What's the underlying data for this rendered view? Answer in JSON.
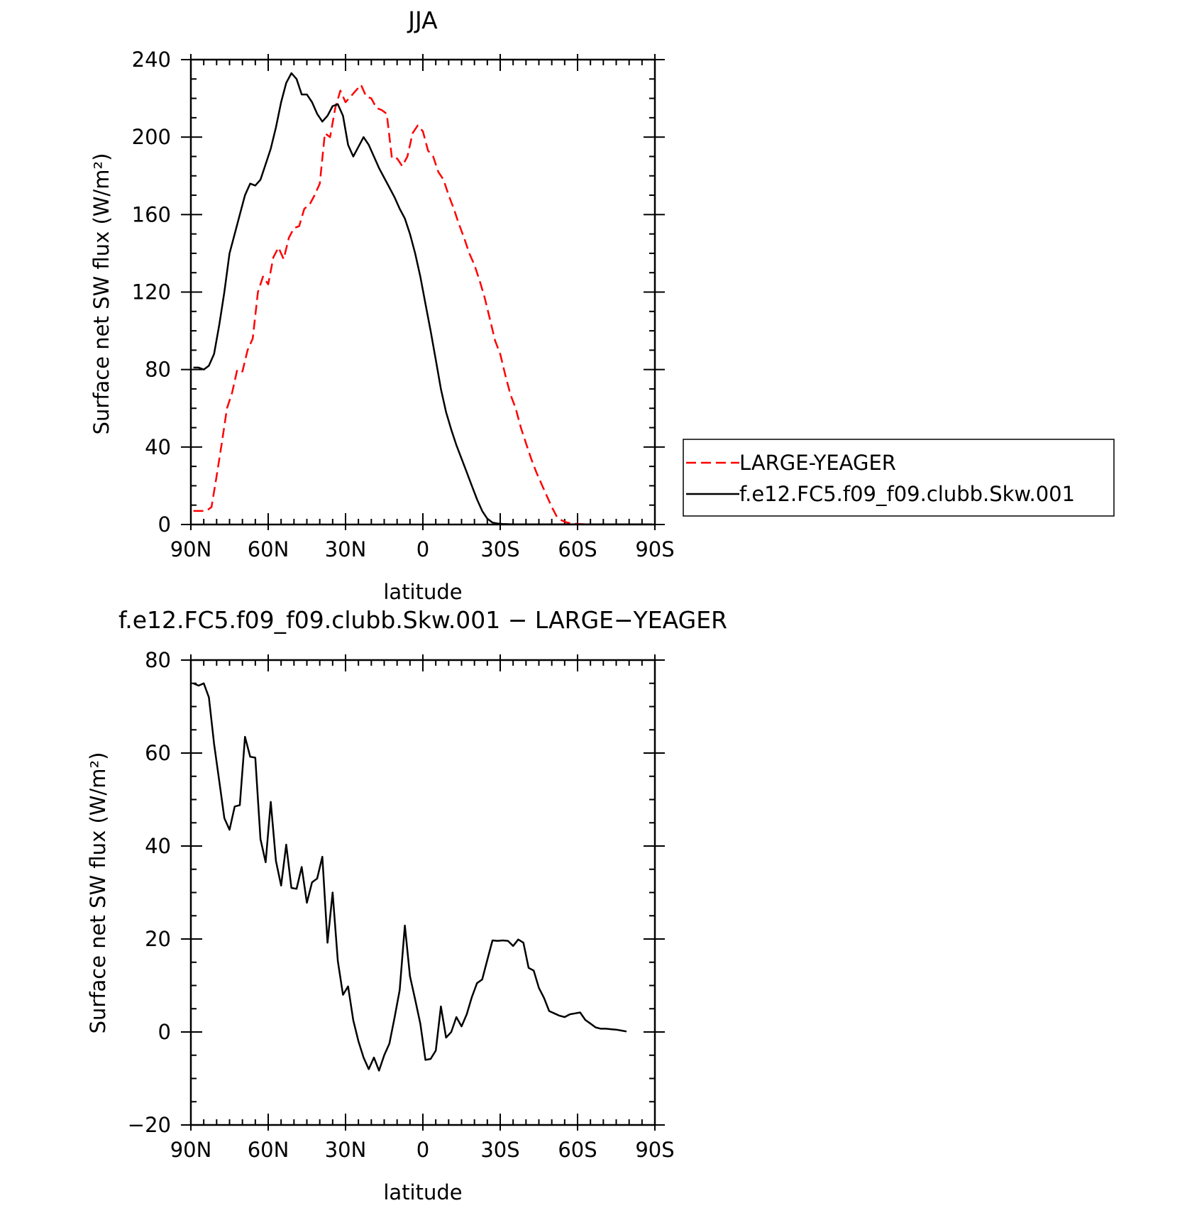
{
  "chart_data": [
    {
      "type": "line",
      "title": "JJA",
      "xlabel": "latitude",
      "ylabel": "Surface net SW flux (W/m²)",
      "xlim": [
        90,
        -90
      ],
      "ylim": [
        0,
        240
      ],
      "x_ticks": [
        90,
        60,
        30,
        0,
        -30,
        -60,
        -90
      ],
      "x_tick_labels": [
        "90N",
        "60N",
        "30N",
        "0",
        "30S",
        "60S",
        "90S"
      ],
      "y_ticks": [
        0,
        40,
        80,
        120,
        160,
        200,
        240
      ],
      "y_tick_labels": [
        "0",
        "40",
        "80",
        "120",
        "160",
        "200",
        "240"
      ],
      "legend_position": "right",
      "series": [
        {
          "name": "LARGE-YEAGER",
          "color": "#ff0000",
          "dash": "dashed",
          "x": [
            89,
            86,
            84,
            82,
            80,
            78,
            76,
            74,
            72,
            70,
            68,
            66,
            64,
            62,
            60,
            58,
            56,
            54,
            52,
            50,
            48,
            46,
            44,
            42,
            40,
            38,
            36,
            34,
            32,
            30,
            28,
            26,
            24,
            22,
            20,
            18,
            16,
            14,
            12,
            10,
            8,
            6,
            4,
            2,
            0,
            -2,
            -4,
            -6,
            -8,
            -10,
            -12,
            -14,
            -16,
            -18,
            -20,
            -22,
            -24,
            -26,
            -28,
            -30,
            -32,
            -34,
            -36,
            -38,
            -40,
            -42,
            -44,
            -46,
            -48,
            -50,
            -52,
            -54,
            -56,
            -58,
            -60,
            -62,
            -64,
            -66,
            -68,
            -70,
            -72,
            -74,
            -76,
            -78,
            -80,
            -82,
            -84,
            -86,
            -88,
            -89
          ],
          "values": [
            7,
            7,
            7,
            9,
            25,
            42,
            60,
            68,
            80,
            79,
            90,
            96,
            120,
            128,
            124,
            138,
            143,
            137,
            148,
            153,
            154,
            163,
            165,
            170,
            176,
            202,
            200,
            215,
            224,
            218,
            221,
            224,
            227,
            221,
            220,
            215,
            214,
            212,
            189,
            189,
            185,
            190,
            202,
            206,
            203,
            193,
            190,
            182,
            178,
            170,
            163,
            155,
            148,
            140,
            134,
            126,
            117,
            106,
            95,
            88,
            77,
            67,
            60,
            50,
            42,
            34,
            27,
            21,
            15,
            9,
            4,
            2,
            1,
            0.5,
            0.3,
            0.2,
            0.1,
            0.1,
            0.1,
            0.1,
            0.1,
            0.1,
            0.1,
            0.1,
            0.1,
            0.1,
            0.1,
            0.1,
            0.1,
            0.1
          ]
        },
        {
          "name": "f.e12.FC5.f09_f09.clubb.Skw.001",
          "color": "#000000",
          "dash": "solid",
          "x": [
            89,
            87,
            85,
            83,
            81,
            79,
            77,
            75,
            73,
            71,
            69,
            67,
            65,
            63,
            61,
            59,
            57,
            55,
            53,
            51,
            49,
            47,
            45,
            43,
            41,
            39,
            37,
            35,
            33,
            31,
            29,
            27,
            25,
            23,
            21,
            19,
            17,
            15,
            13,
            11,
            9,
            7,
            5,
            3,
            1,
            -1,
            -3,
            -5,
            -7,
            -9,
            -11,
            -13,
            -15,
            -17,
            -19,
            -21,
            -23,
            -25,
            -27,
            -29,
            -31,
            -33,
            -35,
            -37,
            -39,
            -41,
            -43,
            -45,
            -47,
            -49,
            -51,
            -53,
            -55,
            -57,
            -59,
            -61,
            -63,
            -65,
            -67,
            -69,
            -71,
            -73,
            -75,
            -77,
            -79,
            -81,
            -83,
            -85,
            -87,
            -89
          ],
          "values": [
            81,
            81,
            80,
            82,
            88,
            103,
            120,
            140,
            150,
            160,
            170,
            176,
            175,
            178,
            186,
            194,
            205,
            218,
            228,
            233,
            230,
            222,
            222,
            218,
            212,
            208,
            211,
            216,
            217,
            211,
            196,
            190,
            195,
            200,
            196,
            190,
            184,
            179,
            174,
            169,
            163,
            158,
            150,
            140,
            128,
            114,
            100,
            85,
            70,
            58,
            49,
            41,
            34,
            27,
            20,
            13,
            7,
            3,
            1,
            0.5,
            0.3,
            0.2,
            0.1,
            0.1,
            0.1,
            0.1,
            0.1,
            0.1,
            0.1,
            0.1,
            0.1,
            0.1,
            0.1,
            0.1,
            0.1,
            0.1,
            0.1,
            0.1,
            0.1,
            0.1,
            0.1,
            0.1,
            0.1,
            0.1,
            0.1,
            0.1,
            0.1,
            0.1,
            0.1,
            0.1
          ]
        }
      ]
    },
    {
      "type": "line",
      "title": "f.e12.FC5.f09_f09.clubb.Skw.001 − LARGE−YEAGER",
      "xlabel": "latitude",
      "ylabel": "Surface net SW flux (W/m²)",
      "xlim": [
        90,
        -90
      ],
      "ylim": [
        -20,
        80
      ],
      "x_ticks": [
        90,
        60,
        30,
        0,
        -30,
        -60,
        -90
      ],
      "x_tick_labels": [
        "90N",
        "60N",
        "30N",
        "0",
        "30S",
        "60S",
        "90S"
      ],
      "y_ticks": [
        -20,
        0,
        20,
        40,
        60,
        80
      ],
      "y_tick_labels": [
        "−20",
        "0",
        "20",
        "40",
        "60",
        "80"
      ],
      "series": [
        {
          "color": "#000000",
          "dash": "solid",
          "x": [
            89,
            87,
            85,
            83,
            81,
            79,
            77,
            75,
            73,
            71,
            69,
            67,
            65,
            63,
            61,
            59,
            57,
            55,
            53,
            51,
            49,
            47,
            45,
            43,
            41,
            39,
            37,
            35,
            33,
            31,
            29,
            27,
            25,
            23,
            21,
            19,
            17,
            15,
            13,
            11,
            9,
            7,
            5,
            3,
            1,
            -1,
            -3,
            -5,
            -7,
            -9,
            -11,
            -13,
            -15,
            -17,
            -19,
            -21,
            -23,
            -25,
            -27,
            -29,
            -31,
            -33,
            -35,
            -37,
            -39,
            -41,
            -43,
            -45,
            -47,
            -49,
            -51,
            -53,
            -55,
            -57,
            -59,
            -61,
            -63,
            -65,
            -67,
            -69,
            -71,
            -73,
            -75,
            -77,
            -79
          ],
          "values": [
            75,
            74.5,
            75,
            72,
            62,
            54,
            46,
            43.5,
            48.5,
            48.8,
            63.5,
            59.2,
            59,
            41.5,
            36.5,
            49.5,
            36.8,
            31.5,
            40.3,
            31,
            30.8,
            35.5,
            27.8,
            32.2,
            33,
            37.7,
            19.2,
            30,
            15.3,
            8,
            9.8,
            2.5,
            -2,
            -5.5,
            -8,
            -5.5,
            -8.3,
            -5,
            -2.5,
            3,
            9,
            22.9,
            12,
            7,
            1.8,
            -6,
            -5.8,
            -4,
            5.5,
            -1.2,
            0,
            3.2,
            1.2,
            3.8,
            7.5,
            10.5,
            11.3,
            15.5,
            19.7,
            19.6,
            19.7,
            19.6,
            18.5,
            19.9,
            19.2,
            13.8,
            13.2,
            9.5,
            7.3,
            4.5,
            4,
            3.5,
            3.2,
            3.8,
            4,
            4.2,
            2.6,
            1.8,
            1,
            0.7,
            0.7,
            0.6,
            0.5,
            0.3,
            0.1
          ]
        }
      ]
    }
  ]
}
